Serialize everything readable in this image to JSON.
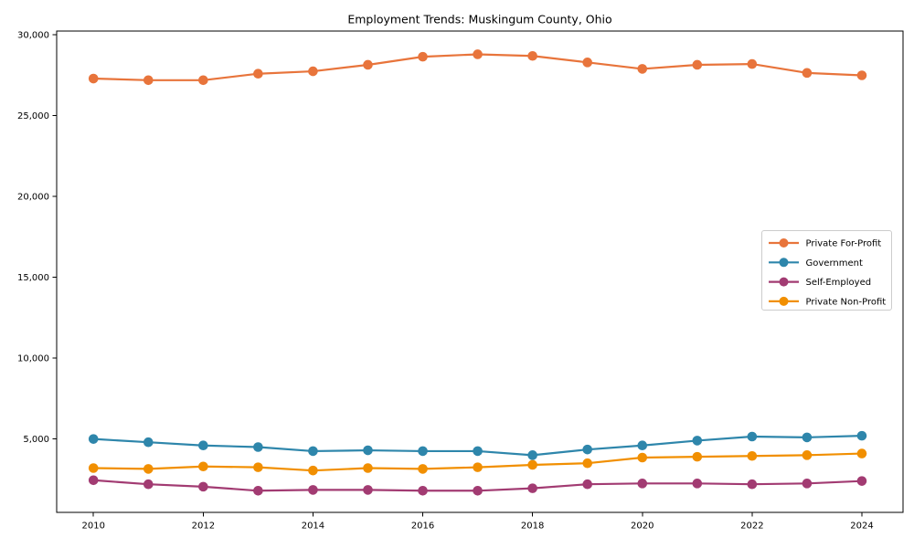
{
  "chart": {
    "title": "Employment Trends: Muskingum County, Ohio"
  },
  "chart_data": {
    "type": "line",
    "title": "Employment Trends: Muskingum County, Ohio",
    "xlabel": "",
    "ylabel": "",
    "grid": false,
    "legend_position": "center right",
    "x": [
      2010,
      2011,
      2012,
      2013,
      2014,
      2015,
      2016,
      2017,
      2018,
      2019,
      2020,
      2021,
      2022,
      2023,
      2024
    ],
    "series": [
      {
        "name": "Private For-Profit",
        "color": "#E8743B",
        "values": [
          27300,
          27200,
          27200,
          27600,
          27750,
          28150,
          28650,
          28800,
          28700,
          28300,
          27900,
          28150,
          28200,
          27650,
          27500
        ]
      },
      {
        "name": "Government",
        "color": "#2E86AB",
        "values": [
          5000,
          4800,
          4600,
          4500,
          4250,
          4300,
          4250,
          4250,
          4000,
          4350,
          4600,
          4900,
          5150,
          5100,
          5200
        ]
      },
      {
        "name": "Self-Employed",
        "color": "#A23B72",
        "values": [
          2450,
          2200,
          2050,
          1800,
          1850,
          1850,
          1800,
          1800,
          1950,
          2200,
          2250,
          2250,
          2200,
          2250,
          2400
        ]
      },
      {
        "name": "Private Non-Profit",
        "color": "#F18F01",
        "values": [
          3200,
          3150,
          3300,
          3250,
          3050,
          3200,
          3150,
          3250,
          3400,
          3500,
          3850,
          3900,
          3950,
          4000,
          4100
        ]
      }
    ],
    "xlim": [
      2009.33,
      2024.75
    ],
    "ylim": [
      460,
      30240
    ],
    "x_ticks": [
      2010,
      2012,
      2014,
      2016,
      2018,
      2020,
      2022,
      2024
    ],
    "x_tick_labels": [
      "2010",
      "2012",
      "2014",
      "2016",
      "2018",
      "2020",
      "2022",
      "2024"
    ],
    "y_ticks": [
      5000,
      10000,
      15000,
      20000,
      25000,
      30000
    ],
    "y_tick_labels": [
      "5,000",
      "10,000",
      "15,000",
      "20,000",
      "25,000",
      "30,000"
    ],
    "axis_color": "#000000",
    "legend_border_color": "#cccccc",
    "legend_background": "#ffffff"
  }
}
